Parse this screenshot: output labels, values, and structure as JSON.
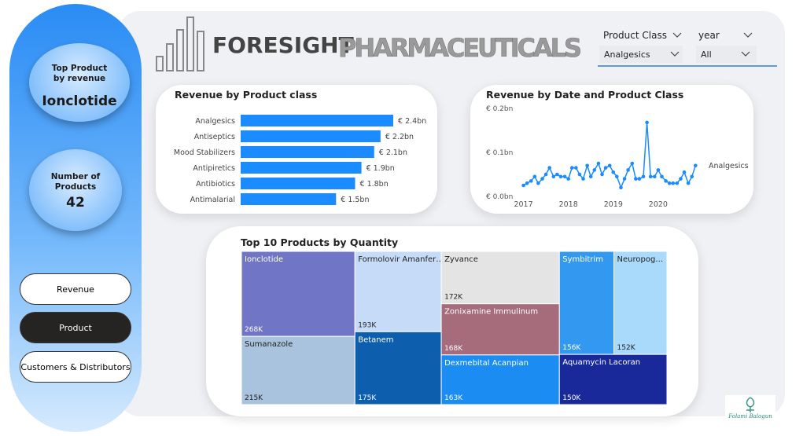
{
  "header": {
    "brand": "FORESIGHT",
    "brand_suffix": "PHARMACEUTICALS"
  },
  "slicers": [
    {
      "label": "Product Class",
      "selected": "Analgesics"
    },
    {
      "label": "year",
      "selected": "All"
    }
  ],
  "cards": [
    {
      "label": "Top Product by revenue",
      "value": "Ionclotide"
    },
    {
      "label": "Number of Products",
      "value": 42
    }
  ],
  "buttons": [
    "Revenue",
    "Product",
    "Customers & Distributors"
  ],
  "signature": "Folami Balogun",
  "chart_data": [
    {
      "type": "hbar",
      "title": "Revenue by Product class",
      "categories": [
        "Analgesics",
        "Antiseptics",
        "Mood Stabilizers",
        "Antipiretics",
        "Antibiotics",
        "Antimalarial"
      ],
      "values": [
        2.4,
        2.2,
        2.1,
        1.9,
        1.8,
        1.5
      ],
      "value_labels": [
        "€ 2.4bn",
        "€ 2.2bn",
        "€ 2.1bn",
        "€ 1.9bn",
        "€ 1.8bn",
        "€ 1.5bn"
      ],
      "color": "#1a8cff"
    },
    {
      "type": "line",
      "title": "Revenue by Date and Product Class",
      "x": [
        2017,
        2017.08,
        2017.17,
        2017.25,
        2017.33,
        2017.42,
        2017.5,
        2017.58,
        2017.67,
        2017.75,
        2017.83,
        2017.92,
        2018,
        2018.08,
        2018.17,
        2018.25,
        2018.33,
        2018.42,
        2018.5,
        2018.58,
        2018.67,
        2018.75,
        2018.83,
        2018.92,
        2019,
        2019.08,
        2019.17,
        2019.25,
        2019.33,
        2019.42,
        2019.5,
        2019.58,
        2019.67,
        2019.75,
        2019.83,
        2019.92,
        2020,
        2020.08,
        2020.17,
        2020.25,
        2020.33,
        2020.42,
        2020.5,
        2020.58,
        2020.67,
        2020.75,
        2020.83
      ],
      "series": [
        {
          "name": "Analgesics",
          "color": "#1a8cff",
          "values": [
            0.025,
            0.03,
            0.035,
            0.045,
            0.03,
            0.04,
            0.05,
            0.065,
            0.045,
            0.05,
            0.045,
            0.045,
            0.04,
            0.065,
            0.065,
            0.05,
            0.04,
            0.07,
            0.045,
            0.06,
            0.075,
            0.05,
            0.065,
            0.07,
            0.055,
            0.045,
            0.02,
            0.04,
            0.06,
            0.075,
            0.04,
            0.04,
            0.045,
            0.168,
            0.045,
            0.045,
            0.06,
            0.045,
            0.035,
            0.03,
            0.03,
            0.03,
            0.04,
            0.055,
            0.03,
            0.045,
            0.07
          ]
        }
      ],
      "xlim": [
        2016.85,
        2021.0
      ],
      "xticks": [
        2017,
        2018,
        2019,
        2020
      ],
      "ylim": [
        0,
        0.2
      ],
      "yticks": [
        {
          "value": 0,
          "label": "€ 0.0bn"
        },
        {
          "value": 0.1,
          "label": "€ 0.1bn"
        },
        {
          "value": 0.2,
          "label": "€ 0.2bn"
        }
      ]
    },
    {
      "type": "treemap",
      "title": "Top 10 Products by Quantity",
      "categories": [
        "Ionclotide",
        "Sumanazole",
        "Formolovir Amanfer…",
        "Betanem",
        "Zyvance",
        "Zonixamine Immulinum",
        "Dexmebital Acanpian",
        "Symbitrim",
        "Neuropog…",
        "Aquamycin Lacoran"
      ],
      "values": [
        268,
        215,
        193,
        175,
        172,
        168,
        163,
        156,
        152,
        150
      ],
      "value_labels": [
        "268K",
        "215K",
        "193K",
        "175K",
        "172K",
        "168K",
        "163K",
        "156K",
        "152K",
        "150K"
      ],
      "colors": [
        "#7075c6",
        "#a9c3df",
        "#c6dbf8",
        "#0d5fae",
        "#e4e4e4",
        "#a66c7b",
        "#1b8cf2",
        "#3399f0",
        "#a9d9fb",
        "#1a299a"
      ]
    }
  ]
}
